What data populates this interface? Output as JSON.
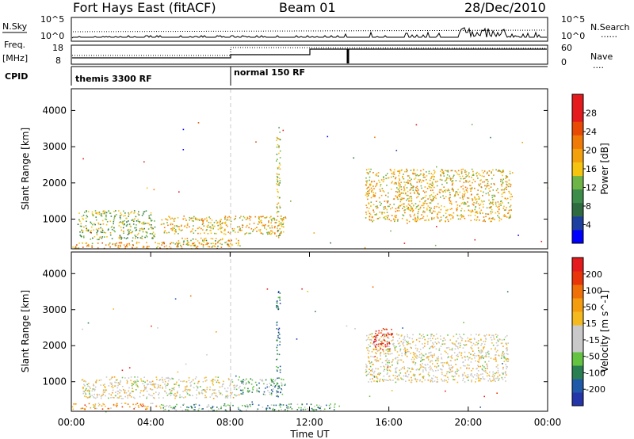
{
  "header": {
    "station": "Fort Hays East (fitACF)",
    "beam": "Beam 01",
    "date": "28/Dec/2010"
  },
  "left_labels": {
    "nsky": "N.Sky",
    "freq_line1": "Freq.",
    "freq_line2": "[MHz]",
    "cpid": "CPID"
  },
  "right_labels": {
    "nsearch": "N.Search",
    "nsearch_style": "......",
    "nave": "Nave",
    "nave_style": "...."
  },
  "noise_axis": {
    "top": "10^5",
    "bottom": "10^0"
  },
  "freq_axis": {
    "top": "18",
    "bottom": "8"
  },
  "nave_axis": {
    "top": "60",
    "bottom": "0"
  },
  "cpid_segments": [
    {
      "label": "themis 3300 RF",
      "start_hr": 0,
      "end_hr": 8
    },
    {
      "label": "normal 150 RF",
      "start_hr": 8,
      "end_hr": 24
    }
  ],
  "colors": {
    "power_scale": [
      "#0000ff",
      "#1c3fa0",
      "#2e6b40",
      "#3d8c4a",
      "#6fb446",
      "#f4c40f",
      "#f2a10c",
      "#ef7a07",
      "#e84a05",
      "#e41a1c",
      "#e41a1c"
    ],
    "velocity_scale": [
      "#2335a8",
      "#2159a9",
      "#2a7f52",
      "#64c442",
      "#c9c9c9",
      "#c9c9c9",
      "#f4b91f",
      "#f49c0f",
      "#ef6f08",
      "#e8350a",
      "#e41a1c"
    ],
    "dashed_marker": "#c8c8c8"
  },
  "chart_data": [
    {
      "type": "heatmap",
      "title": "",
      "xlabel": "",
      "ylabel": "Slant Range [km]",
      "xlim_hr": [
        0,
        24
      ],
      "ylim": [
        180,
        4600
      ],
      "yticks": [
        1000,
        2000,
        3000,
        4000
      ],
      "colorbar_label": "Power [dB]",
      "colorbar_ticks": [
        "4",
        "8",
        "12",
        "16",
        "20",
        "24",
        "28"
      ],
      "colorbar_range": [
        0,
        30
      ],
      "regions": [
        {
          "t0": 0.0,
          "t1": 7.6,
          "r0": 200,
          "r1": 380,
          "level": 0.6
        },
        {
          "t0": 0.3,
          "t1": 4.2,
          "r0": 450,
          "r1": 1250,
          "level": 0.4
        },
        {
          "t0": 4.5,
          "t1": 10.8,
          "r0": 600,
          "r1": 1100,
          "level": 0.55
        },
        {
          "t0": 5.2,
          "t1": 8.5,
          "r0": 250,
          "r1": 500,
          "level": 0.5
        },
        {
          "t0": 14.8,
          "t1": 22.2,
          "r0": 950,
          "r1": 2400,
          "level": 0.55
        },
        {
          "t0": 10.3,
          "t1": 10.5,
          "r0": 500,
          "r1": 3550,
          "level": 0.45
        }
      ]
    },
    {
      "type": "heatmap",
      "title": "",
      "xlabel": "Time UT",
      "ylabel": "Slant Range [km]",
      "xlim_hr": [
        0,
        24
      ],
      "ylim": [
        180,
        4600
      ],
      "xticks": [
        "00:00",
        "04:00",
        "08:00",
        "12:00",
        "16:00",
        "20:00",
        "00:00"
      ],
      "yticks": [
        1000,
        2000,
        3000,
        4000
      ],
      "colorbar_label": "Velocity [m s^-1]",
      "colorbar_ticks": [
        "-200",
        "-100",
        "-50",
        "-15",
        "15",
        "50",
        "100",
        "200"
      ],
      "colorbar_range": [
        -250,
        250
      ],
      "regions": [
        {
          "t0": 0.0,
          "t1": 4.5,
          "r0": 250,
          "r1": 420,
          "level": 0.7
        },
        {
          "t0": 4.5,
          "t1": 13.5,
          "r0": 200,
          "r1": 400,
          "level": 0.3
        },
        {
          "t0": 0.5,
          "t1": 8.5,
          "r0": 550,
          "r1": 1150,
          "level": 0.5
        },
        {
          "t0": 8.5,
          "t1": 10.8,
          "r0": 650,
          "r1": 1100,
          "level": 0.3
        },
        {
          "t0": 14.8,
          "t1": 22.0,
          "r0": 1000,
          "r1": 2350,
          "level": 0.5
        },
        {
          "t0": 15.2,
          "t1": 16.2,
          "r0": 1900,
          "r1": 2500,
          "level": 0.95
        },
        {
          "t0": 10.3,
          "t1": 10.5,
          "r0": 500,
          "r1": 3550,
          "level": 0.2
        }
      ]
    }
  ]
}
